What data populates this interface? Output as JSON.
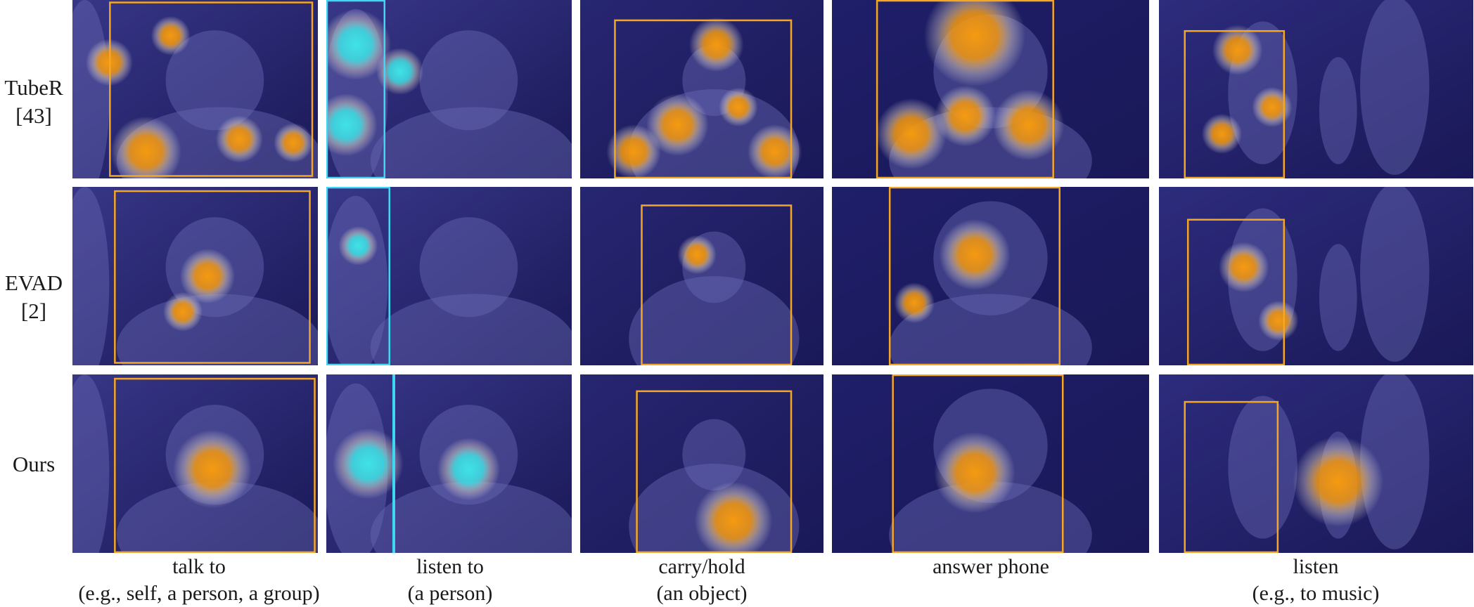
{
  "rows": [
    {
      "label_line1": "TubeR",
      "label_line2": "[43]"
    },
    {
      "label_line1": "EVAD",
      "label_line2": "[2]"
    },
    {
      "label_line1": "Ours",
      "label_line2": ""
    }
  ],
  "columns": [
    {
      "line1": "talk to",
      "line2": "(e.g., self, a person, a group)"
    },
    {
      "line1": "listen to",
      "line2": "(a person)"
    },
    {
      "line1": "carry/hold",
      "line2": "(an object)"
    },
    {
      "line1": "answer phone",
      "line2": ""
    },
    {
      "line1": "listen",
      "line2": "(e.g., to music)"
    }
  ],
  "colors": {
    "box_orange": "#f5a623",
    "box_cyan": "#3fd7f2",
    "tint": "#2a2a8a",
    "heat_orange": "#f59a10",
    "heat_cyan": "#3fe3e6"
  }
}
